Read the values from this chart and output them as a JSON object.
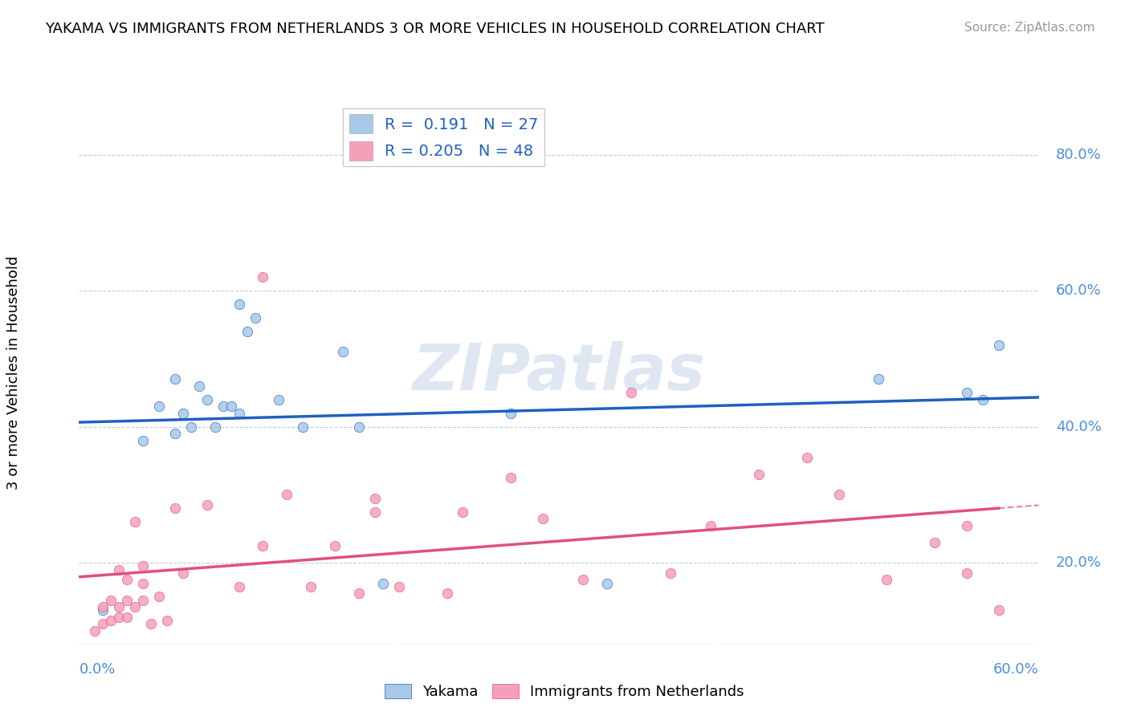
{
  "title": "YAKAMA VS IMMIGRANTS FROM NETHERLANDS 3 OR MORE VEHICLES IN HOUSEHOLD CORRELATION CHART",
  "source": "Source: ZipAtlas.com",
  "ylabel_label": "3 or more Vehicles in Household",
  "ylabel_ticks": [
    "20.0%",
    "40.0%",
    "60.0%",
    "80.0%"
  ],
  "ylabel_tick_vals": [
    0.2,
    0.4,
    0.6,
    0.8
  ],
  "xmin": 0.0,
  "xmax": 0.6,
  "ymin": 0.08,
  "ymax": 0.88,
  "legend_r1": "0.191",
  "legend_n1": "27",
  "legend_r2": "0.205",
  "legend_n2": "48",
  "series1_color": "#a8c8e8",
  "series2_color": "#f5a0b8",
  "line1_color": "#2060c0",
  "line2_color": "#e05080",
  "watermark_color": "#c8d8ea",
  "yakama_x": [
    0.015,
    0.04,
    0.05,
    0.06,
    0.06,
    0.065,
    0.07,
    0.075,
    0.08,
    0.085,
    0.09,
    0.095,
    0.1,
    0.1,
    0.105,
    0.11,
    0.125,
    0.14,
    0.165,
    0.175,
    0.19,
    0.27,
    0.33,
    0.5,
    0.555,
    0.565,
    0.575
  ],
  "yakama_y": [
    0.13,
    0.38,
    0.43,
    0.39,
    0.47,
    0.42,
    0.4,
    0.46,
    0.44,
    0.4,
    0.43,
    0.43,
    0.42,
    0.58,
    0.54,
    0.56,
    0.44,
    0.4,
    0.51,
    0.4,
    0.17,
    0.42,
    0.17,
    0.47,
    0.45,
    0.44,
    0.52
  ],
  "netherlands_x": [
    0.01,
    0.015,
    0.015,
    0.02,
    0.02,
    0.025,
    0.025,
    0.025,
    0.03,
    0.03,
    0.03,
    0.035,
    0.035,
    0.04,
    0.04,
    0.04,
    0.045,
    0.05,
    0.055,
    0.06,
    0.065,
    0.08,
    0.1,
    0.115,
    0.115,
    0.13,
    0.145,
    0.16,
    0.175,
    0.185,
    0.185,
    0.2,
    0.23,
    0.24,
    0.27,
    0.29,
    0.315,
    0.345,
    0.37,
    0.395,
    0.425,
    0.455,
    0.475,
    0.505,
    0.535,
    0.555,
    0.555,
    0.575
  ],
  "netherlands_y": [
    0.1,
    0.11,
    0.135,
    0.115,
    0.145,
    0.12,
    0.135,
    0.19,
    0.12,
    0.145,
    0.175,
    0.135,
    0.26,
    0.145,
    0.17,
    0.195,
    0.11,
    0.15,
    0.115,
    0.28,
    0.185,
    0.285,
    0.165,
    0.225,
    0.62,
    0.3,
    0.165,
    0.225,
    0.155,
    0.275,
    0.295,
    0.165,
    0.155,
    0.275,
    0.325,
    0.265,
    0.175,
    0.45,
    0.185,
    0.255,
    0.33,
    0.355,
    0.3,
    0.175,
    0.23,
    0.185,
    0.255,
    0.13
  ]
}
